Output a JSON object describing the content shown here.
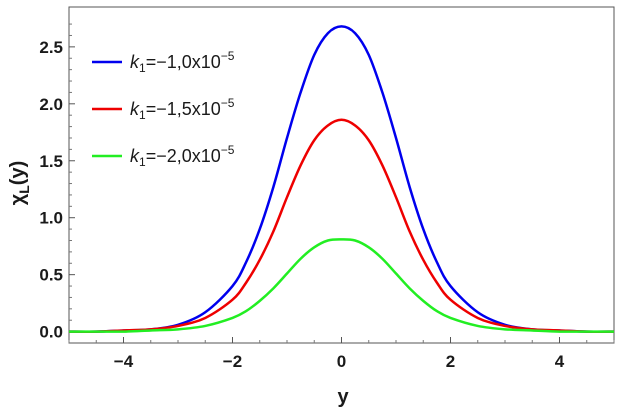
{
  "chart_data": {
    "type": "line",
    "title": "",
    "xlabel": "y",
    "ylabel": "χL(y)",
    "ylabel_main": "χ",
    "ylabel_sub": "L",
    "ylabel_arg": "(y)",
    "xlim": [
      -5,
      5
    ],
    "ylim": [
      -0.1,
      2.85
    ],
    "x_ticks": [
      -4,
      -2,
      0,
      2,
      4
    ],
    "x_tick_labels": [
      "−4",
      "−2",
      "0",
      "2",
      "4"
    ],
    "y_ticks": [
      0.0,
      0.5,
      1.0,
      1.5,
      2.0,
      2.5
    ],
    "y_tick_labels": [
      "0.0",
      "0.5",
      "1.0",
      "1.5",
      "2.0",
      "2.5"
    ],
    "grid": false,
    "legend_position": "top-left",
    "x": [
      -5,
      -4.5,
      -4,
      -3.5,
      -3,
      -2.5,
      -2,
      -1.75,
      -1.5,
      -1.25,
      -1,
      -0.75,
      -0.5,
      -0.25,
      0,
      0.25,
      0.5,
      0.75,
      1,
      1.25,
      1.5,
      1.75,
      2,
      2.5,
      3,
      3.5,
      4,
      4.5,
      5
    ],
    "series": [
      {
        "name": "k1=−1,0x10−5",
        "label_main": "k",
        "label_sub": "1",
        "label_mid": "=−1,0x10",
        "label_sup": "−5",
        "color": "#0000ee",
        "values": [
          0.0,
          0.0,
          0.01,
          0.02,
          0.06,
          0.17,
          0.4,
          0.61,
          0.9,
          1.27,
          1.7,
          2.1,
          2.43,
          2.62,
          2.68,
          2.62,
          2.43,
          2.1,
          1.7,
          1.27,
          0.9,
          0.61,
          0.4,
          0.17,
          0.06,
          0.02,
          0.01,
          0.0,
          0.0
        ]
      },
      {
        "name": "k1=−1,5x10−5",
        "label_main": "k",
        "label_sub": "1",
        "label_mid": "=−1,5x10",
        "label_sup": "−5",
        "color": "#ee0000",
        "values": [
          0.0,
          0.0,
          0.01,
          0.02,
          0.05,
          0.12,
          0.28,
          0.43,
          0.63,
          0.88,
          1.18,
          1.46,
          1.68,
          1.81,
          1.86,
          1.81,
          1.68,
          1.46,
          1.18,
          0.88,
          0.63,
          0.43,
          0.28,
          0.12,
          0.05,
          0.02,
          0.01,
          0.0,
          0.0
        ]
      },
      {
        "name": "k1=−2,0x10−5",
        "label_main": "k",
        "label_sub": "1",
        "label_mid": "=−2,0x10",
        "label_sup": "−5",
        "color": "#22ee22",
        "values": [
          0.0,
          0.0,
          0.0,
          0.01,
          0.02,
          0.05,
          0.12,
          0.18,
          0.27,
          0.38,
          0.51,
          0.64,
          0.74,
          0.8,
          0.81,
          0.8,
          0.74,
          0.64,
          0.51,
          0.38,
          0.27,
          0.18,
          0.12,
          0.05,
          0.02,
          0.01,
          0.0,
          0.0,
          0.0
        ]
      }
    ]
  }
}
